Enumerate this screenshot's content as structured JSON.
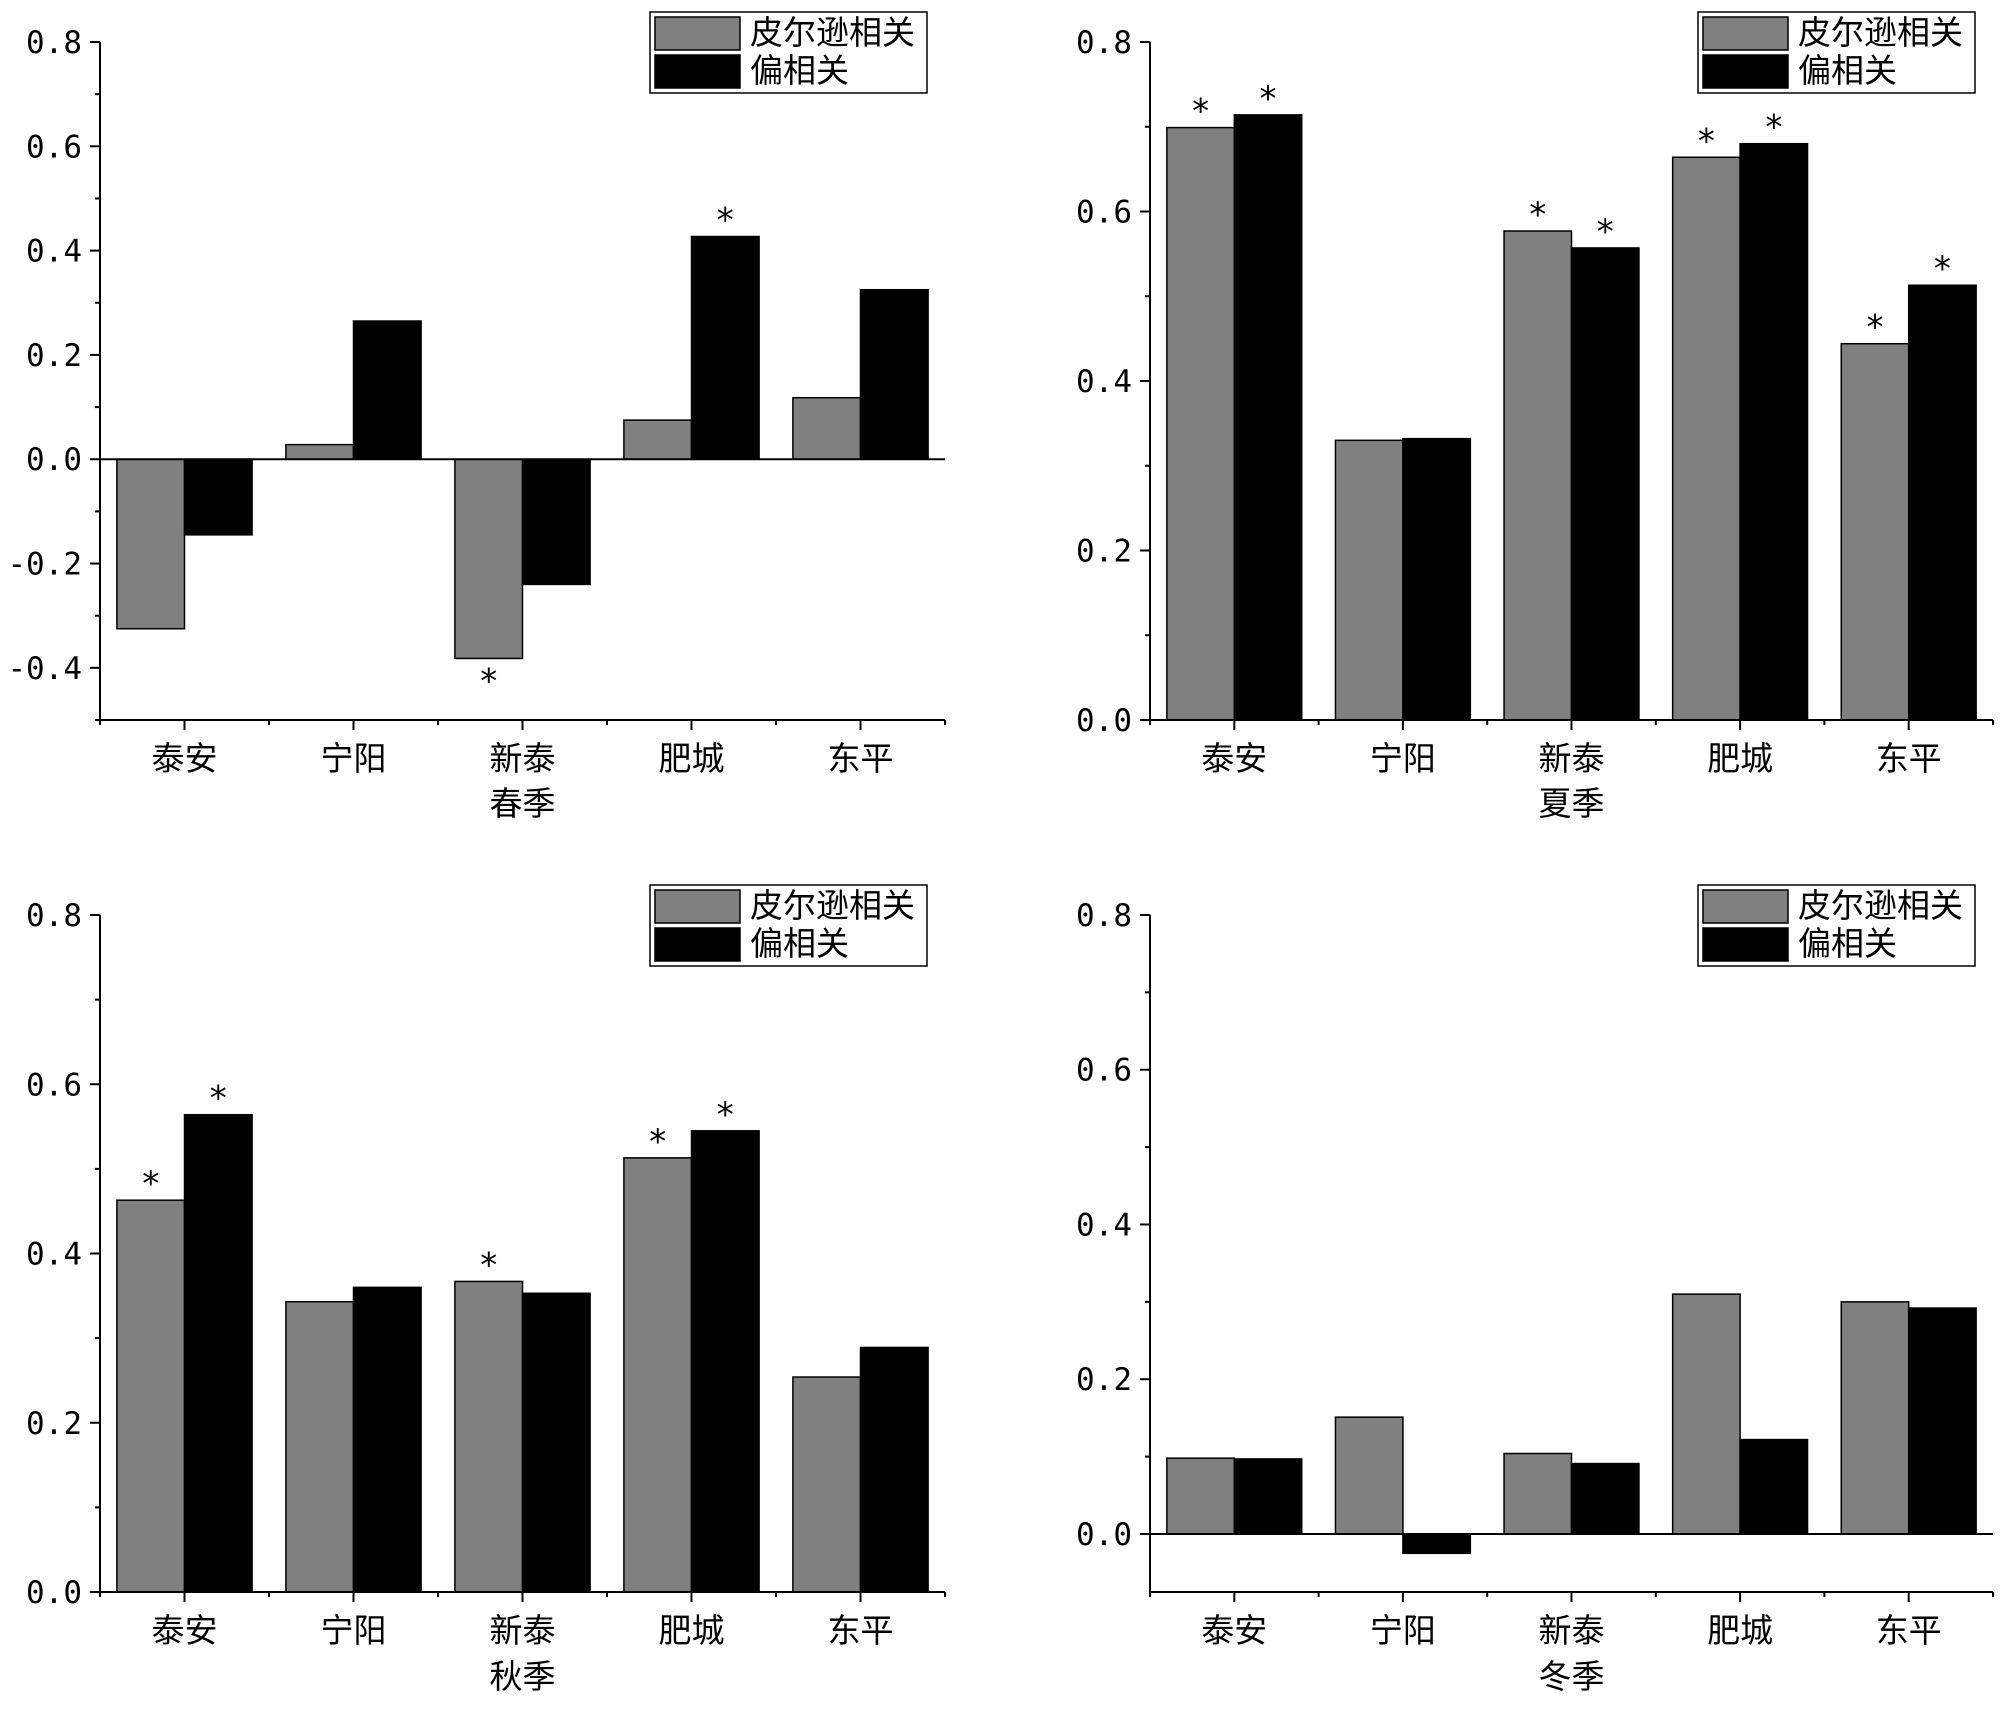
{
  "colors": {
    "pearson": "#808080",
    "partial": "#000000",
    "axis": "#000000"
  },
  "legend": {
    "pearson_label": "皮尔逊相关",
    "partial_label": "偏相关",
    "position": "top-right"
  },
  "chart_data": [
    {
      "type": "bar",
      "title": "春季",
      "categories": [
        "泰安",
        "宁阳",
        "新泰",
        "肥城",
        "东平"
      ],
      "ylim": [
        -0.5,
        0.8
      ],
      "yticks": [
        -0.4,
        -0.2,
        0.0,
        0.2,
        0.4,
        0.6,
        0.8
      ],
      "ytick_labels": [
        "-0.4",
        "-0.2",
        "0.0",
        "0.2",
        "0.4",
        "0.6",
        "0.8"
      ],
      "series": [
        {
          "name": "皮尔逊相关",
          "values": [
            -0.325,
            0.028,
            -0.382,
            0.075,
            0.118
          ],
          "significant": [
            false,
            false,
            true,
            false,
            false
          ]
        },
        {
          "name": "偏相关",
          "values": [
            -0.145,
            0.265,
            -0.24,
            0.427,
            0.325
          ],
          "significant": [
            false,
            false,
            false,
            true,
            false
          ]
        }
      ]
    },
    {
      "type": "bar",
      "title": "夏季",
      "categories": [
        "泰安",
        "宁阳",
        "新泰",
        "肥城",
        "东平"
      ],
      "ylim": [
        0.0,
        0.8
      ],
      "yticks": [
        0.0,
        0.2,
        0.4,
        0.6,
        0.8
      ],
      "ytick_labels": [
        "0.0",
        "0.2",
        "0.4",
        "0.6",
        "0.8"
      ],
      "series": [
        {
          "name": "皮尔逊相关",
          "values": [
            0.699,
            0.33,
            0.577,
            0.664,
            0.444
          ],
          "significant": [
            true,
            false,
            true,
            true,
            true
          ]
        },
        {
          "name": "偏相关",
          "values": [
            0.714,
            0.332,
            0.557,
            0.68,
            0.513
          ],
          "significant": [
            true,
            false,
            true,
            true,
            true
          ]
        }
      ]
    },
    {
      "type": "bar",
      "title": "秋季",
      "categories": [
        "泰安",
        "宁阳",
        "新泰",
        "肥城",
        "东平"
      ],
      "ylim": [
        0.0,
        0.8
      ],
      "yticks": [
        0.0,
        0.2,
        0.4,
        0.6,
        0.8
      ],
      "ytick_labels": [
        "0.0",
        "0.2",
        "0.4",
        "0.6",
        "0.8"
      ],
      "series": [
        {
          "name": "皮尔逊相关",
          "values": [
            0.463,
            0.343,
            0.367,
            0.513,
            0.254
          ],
          "significant": [
            true,
            false,
            true,
            true,
            false
          ]
        },
        {
          "name": "偏相关",
          "values": [
            0.564,
            0.36,
            0.353,
            0.545,
            0.289
          ],
          "significant": [
            true,
            false,
            false,
            true,
            false
          ]
        }
      ]
    },
    {
      "type": "bar",
      "title": "冬季",
      "categories": [
        "泰安",
        "宁阳",
        "新泰",
        "肥城",
        "东平"
      ],
      "ylim": [
        -0.075,
        0.8
      ],
      "yticks": [
        0.0,
        0.2,
        0.4,
        0.6,
        0.8
      ],
      "ytick_labels": [
        "0.0",
        "0.2",
        "0.4",
        "0.6",
        "0.8"
      ],
      "series": [
        {
          "name": "皮尔逊相关",
          "values": [
            0.098,
            0.151,
            0.104,
            0.31,
            0.3
          ],
          "significant": [
            false,
            false,
            false,
            false,
            false
          ]
        },
        {
          "name": "偏相关",
          "values": [
            0.097,
            -0.025,
            0.091,
            0.122,
            0.292
          ],
          "significant": [
            false,
            false,
            false,
            false,
            false
          ]
        }
      ]
    }
  ]
}
